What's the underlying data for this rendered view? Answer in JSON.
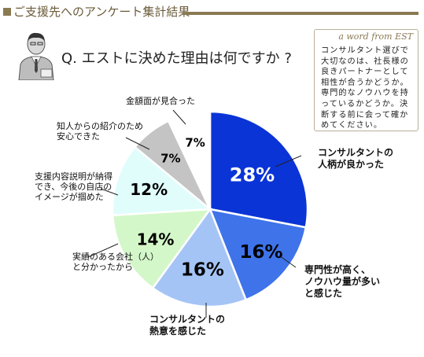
{
  "header": {
    "title": "ご支援先へのアンケート集計結果"
  },
  "question": "Q. エストに決めた理由は何ですか ?",
  "note": {
    "title": "a word from EST",
    "body": "コンサルタント選びで大切なのは、社長様の良きパートナーとして相性が合うかどうか。専門的なノウハウを持っているかどうか。決断する前に会って確かめてください。"
  },
  "person_icon": "businessman-portrait-icon",
  "chart_data": {
    "type": "pie",
    "title": "",
    "start": "12 o'clock, clockwise",
    "slices": [
      {
        "label": [
          "コンサルタントの",
          "人柄が良かった"
        ],
        "value": 28,
        "text": "28%",
        "color": "#0b34d6"
      },
      {
        "label": [
          "専門性が高く、",
          "ノウハウ量が多い",
          "と感じた"
        ],
        "value": 16,
        "text": "16%",
        "color": "#3e73ea"
      },
      {
        "label": [
          "コンサルタントの",
          "熱意を感じた"
        ],
        "value": 16,
        "text": "16%",
        "color": "#a5c4f6"
      },
      {
        "label": [
          "実績のある会社（人）",
          "と分かったから"
        ],
        "value": 14,
        "text": "14%",
        "color": "#d3f7c9"
      },
      {
        "label": [
          "支援内容説明が納得",
          "でき、今後の自店の",
          "イメージが掴めた"
        ],
        "value": 12,
        "text": "12%",
        "color": "#e0fdfc"
      },
      {
        "label": [
          "知人からの紹介のため",
          "安心できた"
        ],
        "value": 7,
        "text": "7%",
        "color": "#c4c4c4"
      },
      {
        "label": [
          "金額面が見合った"
        ],
        "value": 7,
        "text": "7%",
        "color": "#ffffff"
      }
    ]
  }
}
